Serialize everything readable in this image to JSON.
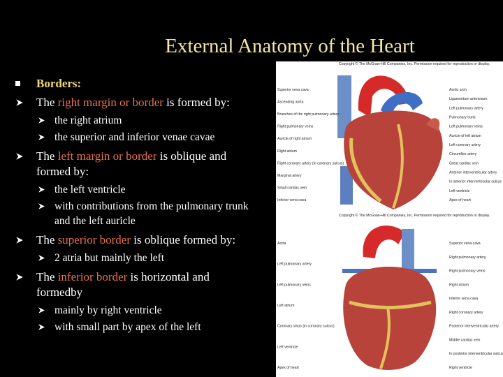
{
  "title": "External Anatomy of the Heart",
  "heading": "Borders:",
  "items": [
    {
      "parts": [
        {
          "text": "The "
        },
        {
          "text": "right margin or border",
          "highlight": true
        },
        {
          "text": " is formed by:"
        }
      ],
      "subitems": [
        "the right atrium",
        "the superior and inferior venae cavae"
      ]
    },
    {
      "parts": [
        {
          "text": "The "
        },
        {
          "text": "left margin or border",
          "highlight": true
        },
        {
          "text": " is oblique and formed by:"
        }
      ],
      "subitems": [
        "the left ventricle",
        " with contributions from the pulmonary trunk and the left auricle"
      ]
    },
    {
      "parts": [
        {
          "text": "The "
        },
        {
          "text": "superior border",
          "highlight": true
        },
        {
          "text": " is oblique formed by:"
        }
      ],
      "subitems": [
        " 2 atria but mainly the left"
      ]
    },
    {
      "parts": [
        {
          "text": "The "
        },
        {
          "text": "inferior border",
          "highlight": true
        },
        {
          "text": " is horizontal and formedby"
        }
      ],
      "subitems": [
        " mainly by right ventricle",
        "with small part by apex of the left"
      ]
    }
  ],
  "figures": [
    {
      "copyright": "Copyright © The McGraw-Hill Companies, Inc. Permission required for reproduction or display.",
      "left_labels": [
        "Superior vena cava",
        "Ascending aorta",
        "Branches of the right pulmonary artery",
        "Right pulmonary veins",
        "Auricle of right atrium",
        "Right atrium",
        "Right coronary artery (in coronary sulcus)",
        "Marginal artery",
        "Small cardiac vein",
        "Inferior vena cava"
      ],
      "right_labels": [
        "Aortic arch",
        "Ligamentum arteriosum",
        "Left pulmonary artery",
        "Pulmonary trunk",
        "Left pulmonary veins",
        "Auricle of left atrium",
        "Left coronary artery",
        "Circumflex artery",
        "Great cardiac vein",
        "Anterior interventricular artery",
        "In anterior interventricular sulcus",
        "Left ventricle",
        "Apex of heart"
      ]
    },
    {
      "copyright": "Copyright © The McGraw-Hill Companies, Inc. Permission required for reproduction or display.",
      "left_labels": [
        "Aorta",
        "Left pulmonary artery",
        "Left pulmonary veins",
        "Left atrium",
        "Coronary sinus (in coronary sulcus)",
        "Left ventricle",
        "Apex of heart"
      ],
      "right_labels": [
        "Superior vena cava",
        "Right pulmonary artery",
        "Right pulmonary veins",
        "Right atrium",
        "Inferior vena cava",
        "Right coronary artery",
        "Posterior interventricular artery",
        "Middle cardiac vein",
        "In posterior interventricular sulcus",
        "Right ventricle"
      ]
    }
  ]
}
